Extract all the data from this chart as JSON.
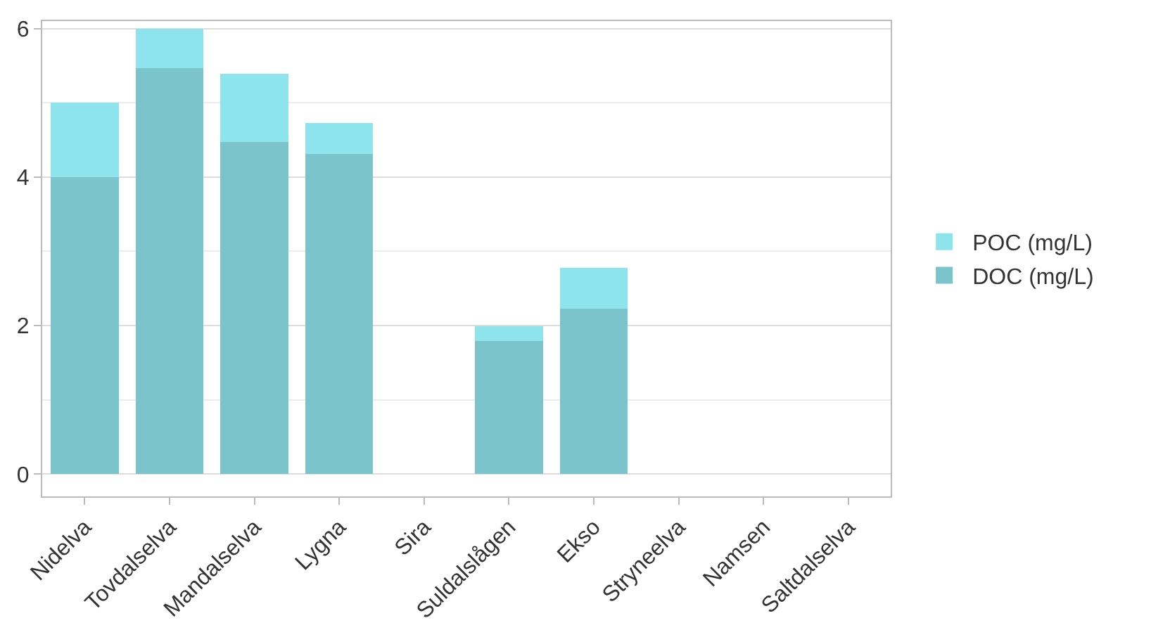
{
  "chart_data": {
    "type": "bar",
    "stacked": true,
    "categories": [
      "Nidelva",
      "Tovdalselva",
      "Mandalselva",
      "Lygna",
      "Sira",
      "Suldalslågen",
      "Ekso",
      "Stryneelva",
      "Namsen",
      "Saltdalselva"
    ],
    "series": [
      {
        "name": "DOC (mg/L)",
        "color": "#7bc4cb",
        "values": [
          4.0,
          5.47,
          4.47,
          4.31,
          null,
          1.79,
          2.23,
          null,
          null,
          null
        ]
      },
      {
        "name": "POC (mg/L)",
        "color": "#8ee4ec",
        "values": [
          1.0,
          0.53,
          0.92,
          0.42,
          null,
          0.2,
          0.55,
          null,
          null,
          null
        ]
      }
    ],
    "ylim": [
      -0.3,
      6.1
    ],
    "yticks": [
      0,
      2,
      4,
      6
    ],
    "grid": true,
    "legend": "right"
  }
}
